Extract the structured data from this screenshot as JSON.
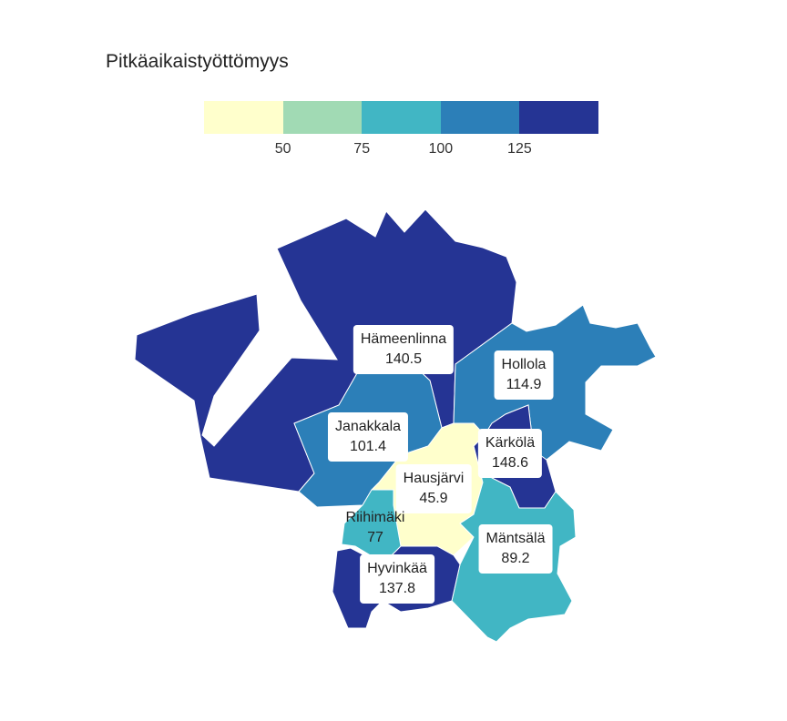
{
  "title": "Pitkäaikaistyöttömyys",
  "legend": {
    "colors": [
      "#ffffcc",
      "#a1dab4",
      "#41b6c4",
      "#2c7fb8",
      "#253494"
    ],
    "ticks": [
      "50",
      "75",
      "100",
      "125"
    ]
  },
  "regions": [
    {
      "name": "Hämeenlinna",
      "value": "140.5",
      "color": "#253494"
    },
    {
      "name": "Hollola",
      "value": "114.9",
      "color": "#2c7fb8"
    },
    {
      "name": "Janakkala",
      "value": "101.4",
      "color": "#2c7fb8"
    },
    {
      "name": "Kärkölä",
      "value": "148.6",
      "color": "#253494"
    },
    {
      "name": "Hausjärvi",
      "value": "45.9",
      "color": "#ffffcc"
    },
    {
      "name": "Riihimäki",
      "value": "77",
      "color": "#41b6c4"
    },
    {
      "name": "Mäntsälä",
      "value": "89.2",
      "color": "#41b6c4"
    },
    {
      "name": "Hyvinkää",
      "value": "137.8",
      "color": "#253494"
    }
  ]
}
